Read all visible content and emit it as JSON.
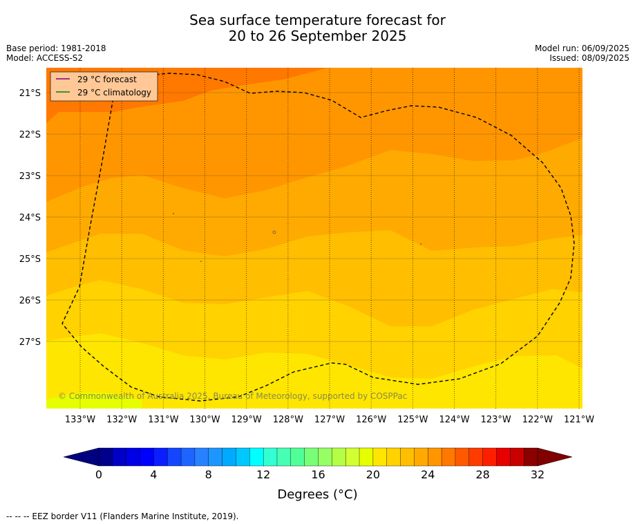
{
  "title": {
    "line1": "Sea surface temperature forecast for",
    "line2": "20 to 26 September 2025"
  },
  "meta": {
    "base_period": "Base period: 1981-2018",
    "model": "Model: ACCESS-S2",
    "model_run": "Model run: 06/09/2025",
    "issued": "Issued: 08/09/2025"
  },
  "legend": {
    "forecast": "29 °C  forecast",
    "climatology": "29 °C  climatology",
    "forecast_color": "#800080",
    "climatology_color": "#008000",
    "background": "#ffc896"
  },
  "lat_labels": [
    "21°S",
    "22°S",
    "23°S",
    "24°S",
    "25°S",
    "26°S",
    "27°S"
  ],
  "lon_labels": [
    "133°W",
    "132°W",
    "131°W",
    "130°W",
    "129°W",
    "128°W",
    "127°W",
    "126°W",
    "125°W",
    "124°W",
    "123°W",
    "122°W",
    "121°W"
  ],
  "copyright": "© Commonwealth of Australia 2025, Bureau of Meteorology, supported by COSPPac",
  "colorbar": {
    "tick_labels": [
      "0",
      "4",
      "8",
      "12",
      "16",
      "20",
      "24",
      "28",
      "32"
    ],
    "units": "Degrees (°C)",
    "colors": [
      "#00008b",
      "#0000c8",
      "#0000e6",
      "#0000ff",
      "#0a1eff",
      "#1446ff",
      "#1e64ff",
      "#2882ff",
      "#1e96ff",
      "#00aaff",
      "#00c8ff",
      "#00ffff",
      "#32ffd2",
      "#46ffb4",
      "#50ff96",
      "#78ff78",
      "#96ff64",
      "#b4ff46",
      "#d2ff32",
      "#e6ff00",
      "#ffe600",
      "#ffd200",
      "#ffbe00",
      "#ffaa00",
      "#ff9600",
      "#ff7800",
      "#ff5a00",
      "#ff3c00",
      "#ff1e00",
      "#e60000",
      "#c80000",
      "#8b0000"
    ],
    "under_color": "#000080",
    "over_color": "#800000"
  },
  "footnote": "--  --  -- EEZ border V11 (Flanders Marine Institute, 2019)."
}
